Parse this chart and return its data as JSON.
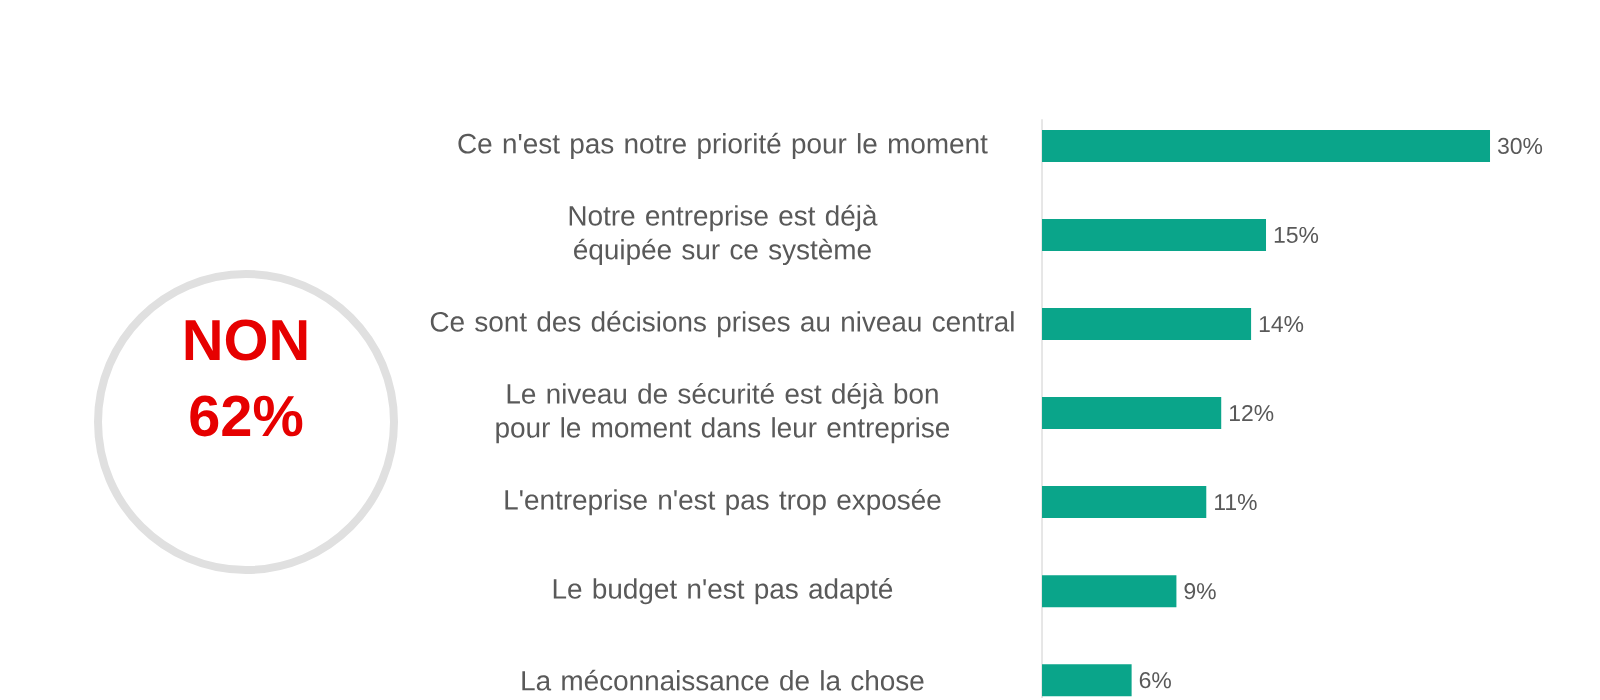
{
  "chart_data": {
    "type": "bar",
    "orientation": "horizontal",
    "categories": [
      "Ce n'est pas notre priorité pour le moment",
      "Notre entreprise est déjà équipée sur ce système",
      "Ce sont des décisions prises au niveau central",
      "Le niveau de sécurité est déjà bon pour le moment dans leur entreprise",
      "L'entreprise n'est pas trop exposée",
      "Le budget n'est pas adapté",
      "La méconnaissance de la chose"
    ],
    "values": [
      30,
      15,
      14,
      12,
      11,
      9,
      6
    ],
    "value_labels": [
      "30%",
      "15%",
      "14%",
      "12%",
      "11%",
      "9%",
      "6%"
    ],
    "color": "#0aa58a",
    "annotations": [
      "NON",
      "62%"
    ]
  }
}
